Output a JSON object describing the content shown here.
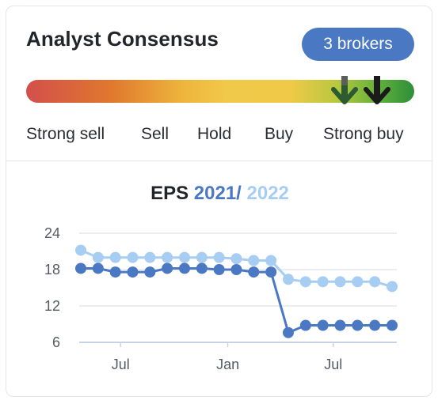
{
  "consensus": {
    "title": "Analyst Consensus",
    "brokers_badge": "3 brokers",
    "scale_labels": [
      "Strong sell",
      "Sell",
      "Hold",
      "Buy",
      "Strong buy"
    ],
    "current_rating": "Strong buy",
    "previous_rating": "Strong buy",
    "colors": {
      "badge": "#4a78c2",
      "arrow_current": "#1b1b1b",
      "arrow_previous": "#2c5a31"
    }
  },
  "eps_chart": {
    "title_prefix": "EPS",
    "year_a": "2021",
    "separator": "/",
    "year_b": "2022"
  },
  "chart_data": {
    "type": "line",
    "title": "EPS 2021 / 2022",
    "xlabel": "",
    "ylabel": "",
    "ylim": [
      6,
      24
    ],
    "yticks": [
      6,
      12,
      18,
      24
    ],
    "xtick_labels": [
      "Jul",
      "Jan",
      "Jul"
    ],
    "grid": true,
    "x": [
      0,
      1,
      2,
      3,
      4,
      5,
      6,
      7,
      8,
      9,
      10,
      11,
      12,
      13,
      14,
      15,
      16,
      17,
      18
    ],
    "series": [
      {
        "name": "2021",
        "color": "#4a78c2",
        "values": [
          18.2,
          18.2,
          17.6,
          17.6,
          17.6,
          18.2,
          18.2,
          18.2,
          18.0,
          18.0,
          17.6,
          17.6,
          7.6,
          8.8,
          8.8,
          8.8,
          8.8,
          8.8,
          8.8
        ]
      },
      {
        "name": "2022",
        "color": "#a7cdf2",
        "values": [
          21.2,
          20.0,
          20.0,
          20.0,
          20.0,
          20.0,
          20.0,
          20.0,
          20.0,
          19.8,
          19.5,
          19.5,
          16.4,
          16.0,
          16.0,
          16.0,
          16.0,
          16.0,
          15.2
        ]
      }
    ]
  }
}
